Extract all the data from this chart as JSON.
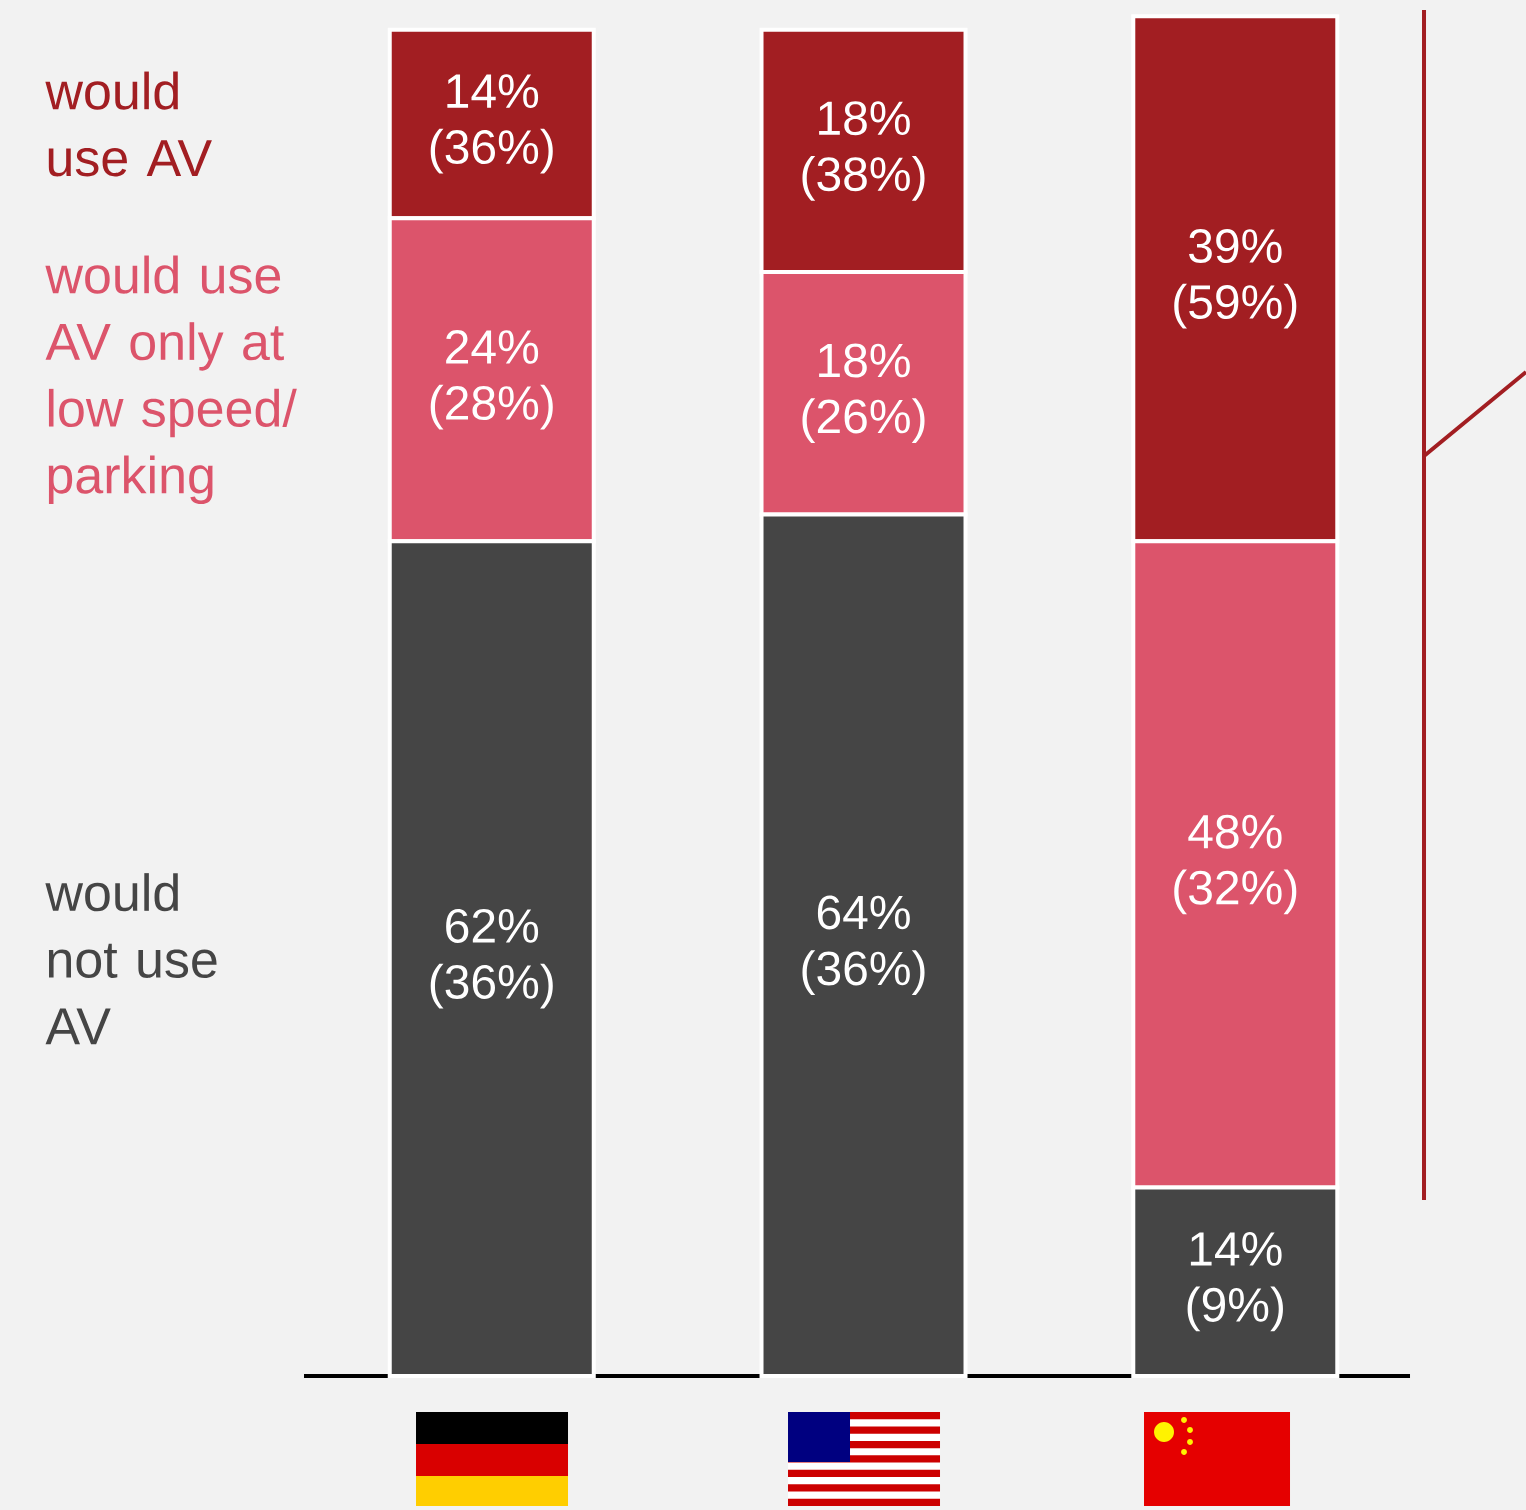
{
  "chart_data": {
    "type": "bar",
    "stacked": true,
    "categories": [
      null,
      null,
      null
    ],
    "series": [
      {
        "name": "would not use AV",
        "color": "#454545",
        "values": [
          62,
          64,
          14
        ],
        "value_labels": [
          "62% (36%)",
          "64% (36%)",
          "14% (9%)"
        ]
      },
      {
        "name": "would use AV only at low speed/ parking",
        "color": "#dc546b",
        "values": [
          24,
          18,
          48
        ],
        "value_labels": [
          "24% (28%)",
          "18% (26%)",
          "48% (32%)"
        ]
      },
      {
        "name": "would use AV",
        "color": "#a21e22",
        "values": [
          14,
          18,
          39
        ],
        "value_labels": [
          "14% (36%)",
          "18% (38%)",
          "39% (59%)"
        ]
      }
    ]
  }
}
